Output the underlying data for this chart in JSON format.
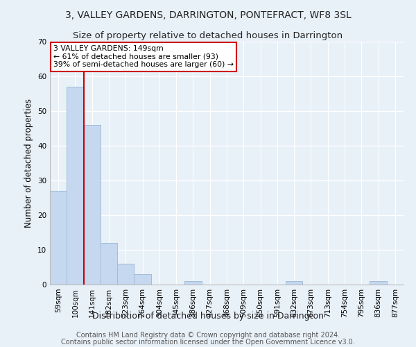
{
  "title": "3, VALLEY GARDENS, DARRINGTON, PONTEFRACT, WF8 3SL",
  "subtitle": "Size of property relative to detached houses in Darrington",
  "xlabel": "Distribution of detached houses by size in Darrington",
  "ylabel": "Number of detached properties",
  "bar_labels": [
    "59sqm",
    "100sqm",
    "141sqm",
    "182sqm",
    "223sqm",
    "264sqm",
    "304sqm",
    "345sqm",
    "386sqm",
    "427sqm",
    "468sqm",
    "509sqm",
    "550sqm",
    "591sqm",
    "632sqm",
    "673sqm",
    "713sqm",
    "754sqm",
    "795sqm",
    "836sqm",
    "877sqm"
  ],
  "bar_values": [
    27,
    57,
    46,
    12,
    6,
    3,
    0,
    0,
    1,
    0,
    0,
    0,
    0,
    0,
    1,
    0,
    0,
    0,
    0,
    1,
    0
  ],
  "bar_color": "#c5d8f0",
  "bar_edge_color": "#a0bcd8",
  "ylim": [
    0,
    70
  ],
  "yticks": [
    0,
    10,
    20,
    30,
    40,
    50,
    60,
    70
  ],
  "vline_x": 1.5,
  "vline_color": "#cc0000",
  "annotation_text": "3 VALLEY GARDENS: 149sqm\n← 61% of detached houses are smaller (93)\n39% of semi-detached houses are larger (60) →",
  "annotation_box_color": "#ffffff",
  "annotation_box_edge": "#cc0000",
  "footer_line1": "Contains HM Land Registry data © Crown copyright and database right 2024.",
  "footer_line2": "Contains public sector information licensed under the Open Government Licence v3.0.",
  "background_color": "#e8f0f8",
  "plot_background": "#e8f0f8",
  "grid_color": "#ffffff",
  "title_fontsize": 10,
  "subtitle_fontsize": 9.5,
  "xlabel_fontsize": 9,
  "ylabel_fontsize": 8.5,
  "tick_fontsize": 7.5,
  "footer_fontsize": 7
}
